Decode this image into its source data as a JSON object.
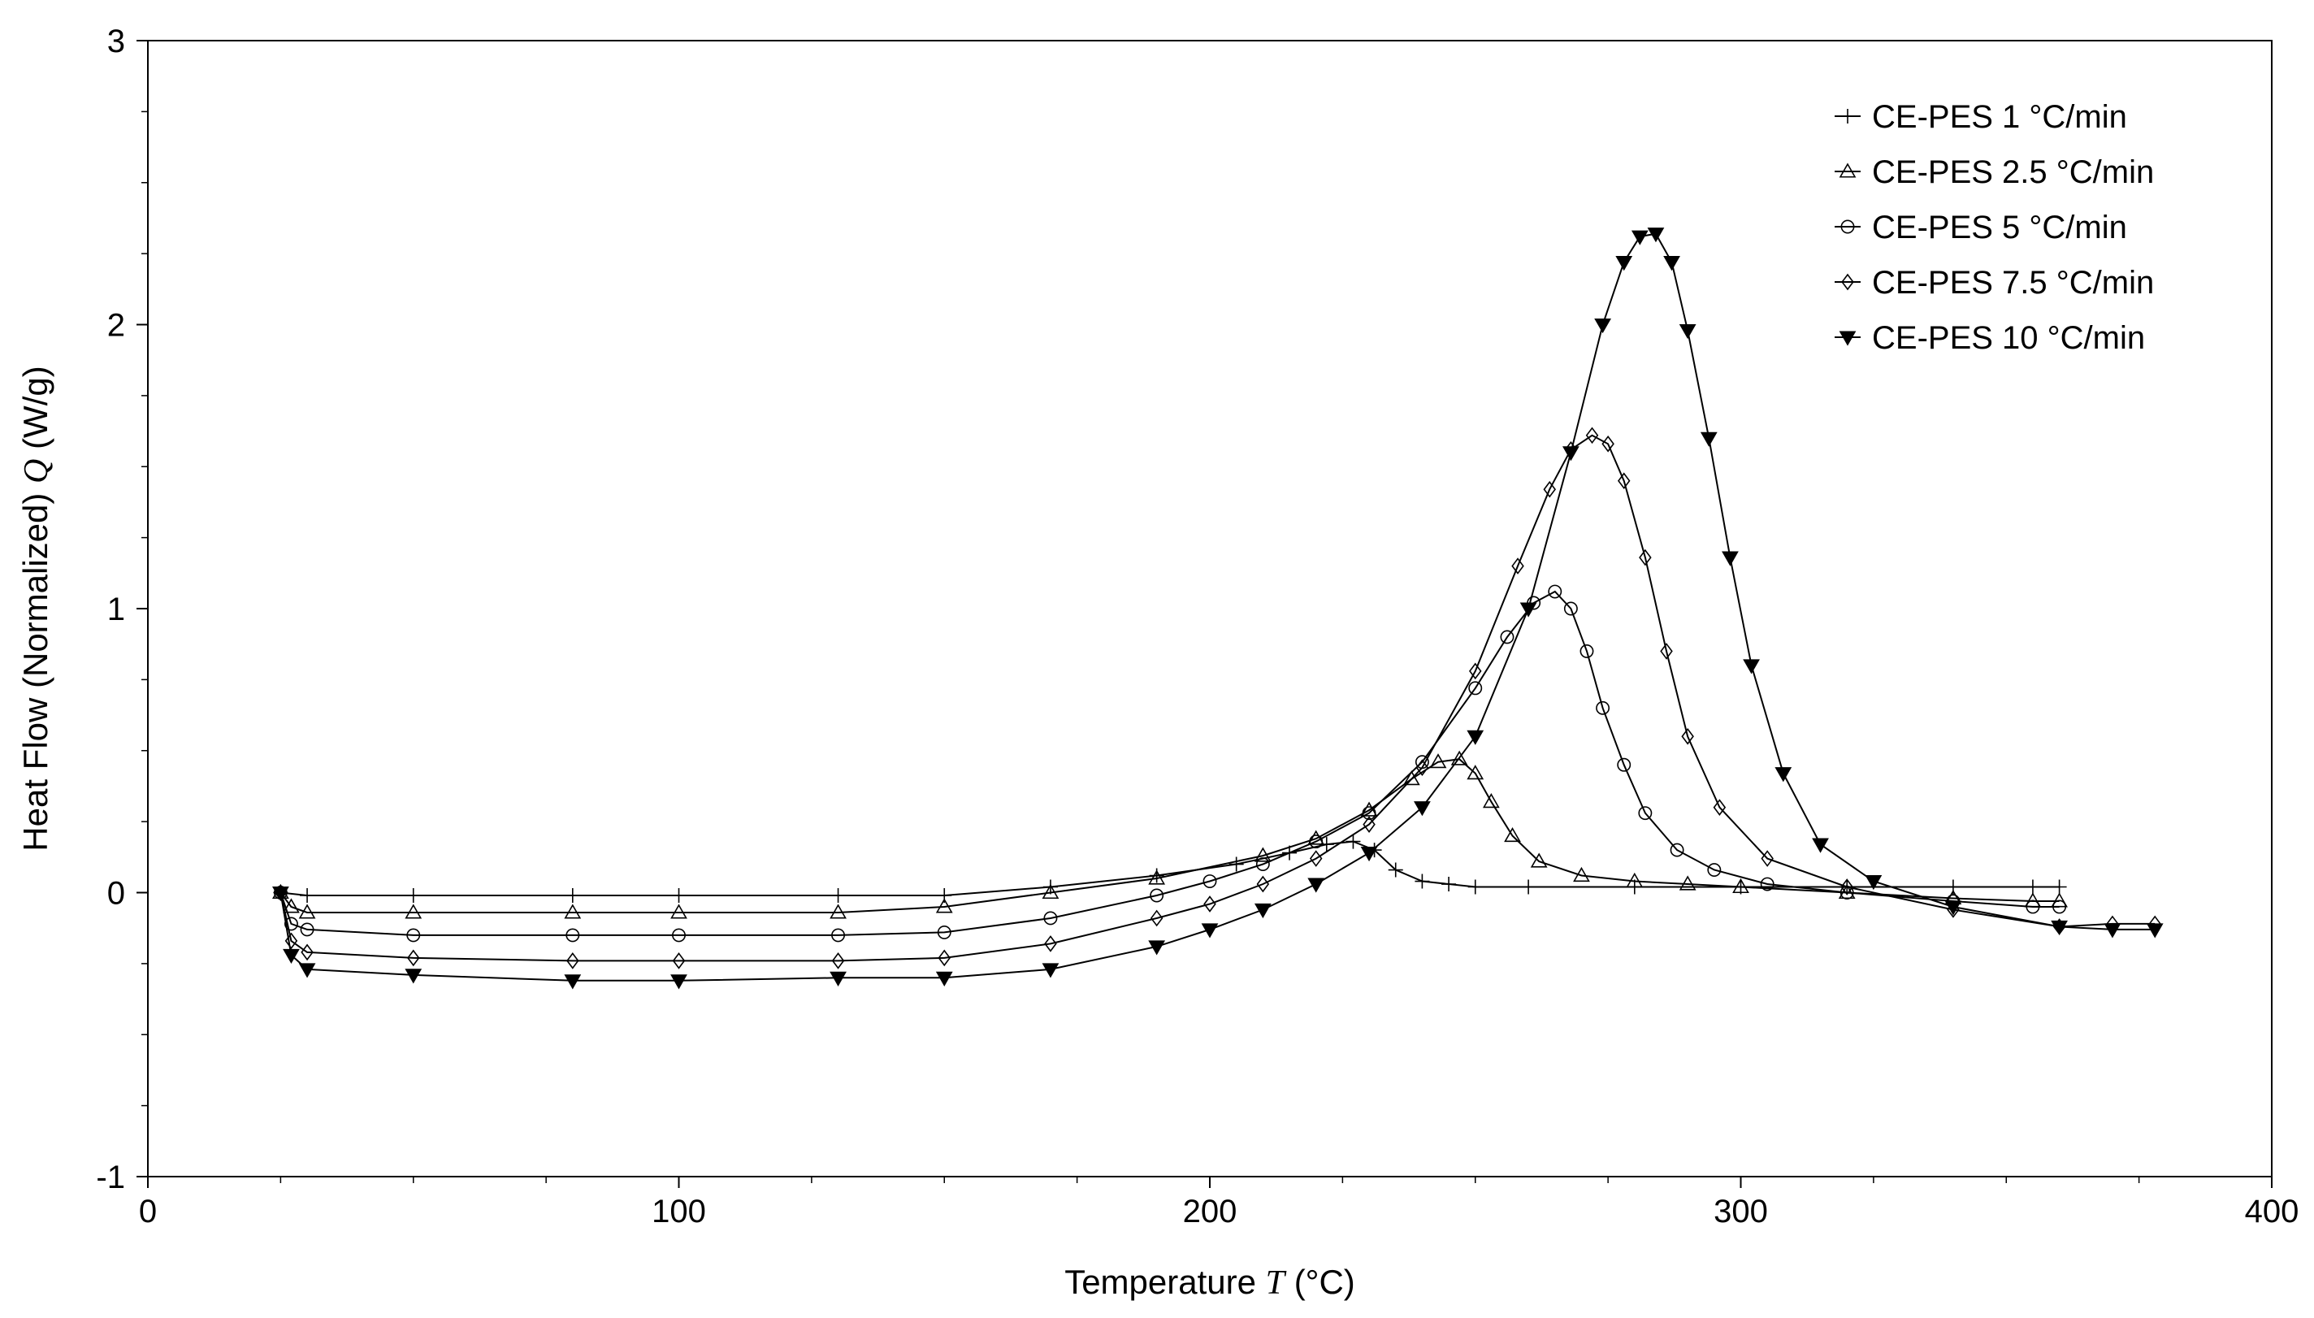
{
  "chart_data": {
    "type": "scatter",
    "title": "",
    "xlabel": {
      "prefix": "Temperature",
      "symbol": "T",
      "unit": "(°C)"
    },
    "ylabel": {
      "prefix": "Heat Flow (Normalized)",
      "symbol": "Q",
      "unit": "(W/g)"
    },
    "xlim": [
      0,
      400
    ],
    "ylim": [
      -1,
      3
    ],
    "x_ticks": [
      0,
      100,
      200,
      300,
      400
    ],
    "y_ticks": [
      -1,
      0,
      1,
      2,
      3
    ],
    "grid": false,
    "legend_position": "top-right",
    "series": [
      {
        "name": "CE-PES 1 °C/min",
        "marker": "plus",
        "x": [
          25,
          30,
          50,
          80,
          100,
          130,
          150,
          170,
          190,
          205,
          215,
          222,
          227,
          231,
          235,
          240,
          245,
          250,
          260,
          280,
          300,
          320,
          340,
          355,
          360
        ],
        "y": [
          0.0,
          -0.01,
          -0.01,
          -0.01,
          -0.01,
          -0.01,
          -0.01,
          0.02,
          0.06,
          0.1,
          0.14,
          0.17,
          0.18,
          0.15,
          0.08,
          0.04,
          0.03,
          0.02,
          0.02,
          0.02,
          0.02,
          0.02,
          0.02,
          0.02,
          0.02
        ]
      },
      {
        "name": "CE-PES 2.5 °C/min",
        "marker": "triangle",
        "x": [
          25,
          27,
          30,
          50,
          80,
          100,
          130,
          150,
          170,
          190,
          210,
          220,
          230,
          238,
          243,
          247,
          250,
          253,
          257,
          262,
          270,
          280,
          290,
          300,
          320,
          340,
          355,
          360
        ],
        "y": [
          0.0,
          -0.05,
          -0.07,
          -0.07,
          -0.07,
          -0.07,
          -0.07,
          -0.05,
          0.0,
          0.05,
          0.13,
          0.19,
          0.29,
          0.4,
          0.46,
          0.47,
          0.42,
          0.32,
          0.2,
          0.11,
          0.06,
          0.04,
          0.03,
          0.02,
          0.0,
          -0.02,
          -0.03,
          -0.03
        ]
      },
      {
        "name": "CE-PES 5 °C/min",
        "marker": "circle",
        "x": [
          25,
          27,
          30,
          50,
          80,
          100,
          130,
          150,
          170,
          190,
          200,
          210,
          220,
          230,
          240,
          250,
          256,
          261,
          265,
          268,
          271,
          274,
          278,
          282,
          288,
          295,
          305,
          320,
          340,
          355,
          360
        ],
        "y": [
          0.0,
          -0.11,
          -0.13,
          -0.15,
          -0.15,
          -0.15,
          -0.15,
          -0.14,
          -0.09,
          -0.01,
          0.04,
          0.1,
          0.18,
          0.28,
          0.46,
          0.72,
          0.9,
          1.02,
          1.06,
          1.0,
          0.85,
          0.65,
          0.45,
          0.28,
          0.15,
          0.08,
          0.03,
          0.0,
          -0.03,
          -0.05,
          -0.05
        ]
      },
      {
        "name": "CE-PES 7.5 °C/min",
        "marker": "diamond",
        "x": [
          25,
          27,
          30,
          50,
          80,
          100,
          130,
          150,
          170,
          190,
          200,
          210,
          220,
          230,
          240,
          250,
          258,
          264,
          268,
          272,
          275,
          278,
          282,
          286,
          290,
          296,
          305,
          320,
          340,
          360,
          370,
          378
        ],
        "y": [
          0.0,
          -0.17,
          -0.21,
          -0.23,
          -0.24,
          -0.24,
          -0.24,
          -0.23,
          -0.18,
          -0.09,
          -0.04,
          0.03,
          0.12,
          0.24,
          0.44,
          0.78,
          1.15,
          1.42,
          1.56,
          1.61,
          1.58,
          1.45,
          1.18,
          0.85,
          0.55,
          0.3,
          0.12,
          0.02,
          -0.06,
          -0.12,
          -0.11,
          -0.11
        ]
      },
      {
        "name": "CE-PES 10 °C/min",
        "marker": "triangle-down",
        "x": [
          25,
          27,
          30,
          50,
          80,
          100,
          130,
          150,
          170,
          190,
          200,
          210,
          220,
          230,
          240,
          250,
          260,
          268,
          274,
          278,
          281,
          284,
          287,
          290,
          294,
          298,
          302,
          308,
          315,
          325,
          340,
          360,
          370,
          378
        ],
        "y": [
          0.0,
          -0.22,
          -0.27,
          -0.29,
          -0.31,
          -0.31,
          -0.3,
          -0.3,
          -0.27,
          -0.19,
          -0.13,
          -0.06,
          0.03,
          0.14,
          0.3,
          0.55,
          1.0,
          1.55,
          2.0,
          2.22,
          2.31,
          2.32,
          2.22,
          1.98,
          1.6,
          1.18,
          0.8,
          0.42,
          0.17,
          0.04,
          -0.05,
          -0.12,
          -0.13,
          -0.13
        ]
      }
    ]
  }
}
